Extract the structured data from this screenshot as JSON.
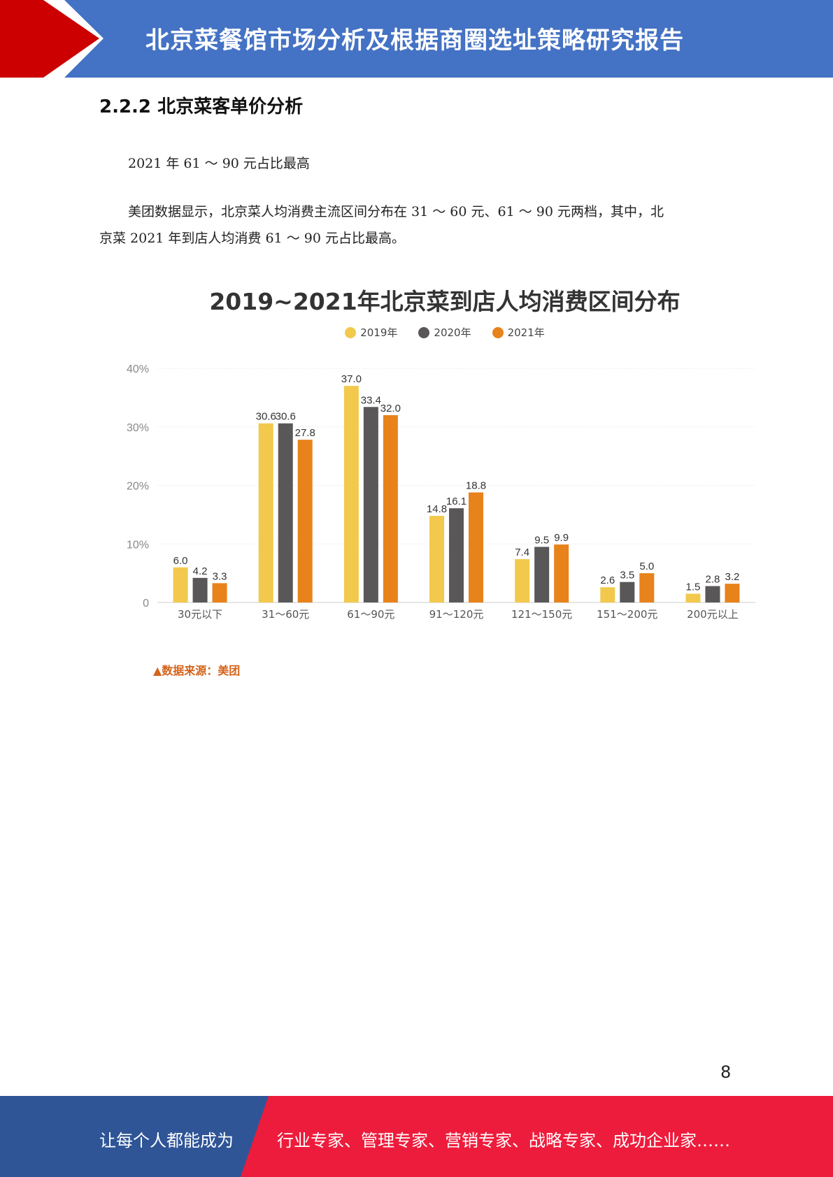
{
  "header": {
    "title": "北京菜餐馆市场分析及根据商圈选址策略研究报告"
  },
  "section": {
    "title": "2.2.2 北京菜客单价分析"
  },
  "paragraphs": {
    "subtitle": "2021 年 61 ～ 90 元占比最高",
    "body_line1": "美团数据显示，北京菜人均消费主流区间分布在 31 ～ 60 元、61 ～ 90 元两档，其中，北",
    "body_line2": "京菜 2021 年到店人均消费 61 ～ 90 元占比最高。"
  },
  "chart_data": {
    "type": "bar",
    "title": "2019~2021年北京菜到店人均消费区间分布",
    "categories": [
      "30元以下",
      "31～60元",
      "61～90元",
      "91～120元",
      "121～150元",
      "151～200元",
      "200元以上"
    ],
    "series": [
      {
        "name": "2019年",
        "color": "#f2c94c",
        "values": [
          6.0,
          30.6,
          37.0,
          14.8,
          7.4,
          2.6,
          1.5
        ]
      },
      {
        "name": "2020年",
        "color": "#595757",
        "values": [
          4.2,
          30.6,
          33.4,
          16.1,
          9.5,
          3.5,
          2.8
        ]
      },
      {
        "name": "2021年",
        "color": "#e8821a",
        "values": [
          3.3,
          27.8,
          32.0,
          18.8,
          9.9,
          5.0,
          3.2
        ]
      }
    ],
    "yticks": [
      "0",
      "10%",
      "20%",
      "30%",
      "40%"
    ],
    "ylim": [
      0,
      40
    ],
    "grid": true,
    "legend": "top-center",
    "source": "▲数据来源：美团"
  },
  "page": {
    "number": "8"
  },
  "footer": {
    "left": "让每个人都能成为",
    "right": "行业专家、管理专家、营销专家、战略专家、成功企业家……"
  }
}
